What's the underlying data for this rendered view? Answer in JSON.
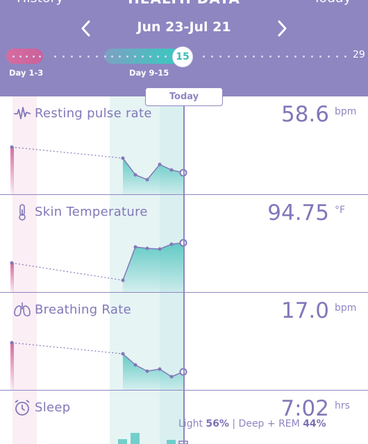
{
  "header": {
    "left_link": "History",
    "title": "HEALTH DATA",
    "right_link": "Today",
    "range": "Jun 23-Jul 21",
    "timeline": {
      "current_day": "15",
      "end_day": "29",
      "label_a": "Day 1-3",
      "label_b": "Day 9-15"
    }
  },
  "today_tag": "Today",
  "sections": [
    {
      "name": "resting-pulse",
      "title": "Resting pulse rate",
      "value": "58.6",
      "unit": "bpm",
      "icon": "pulse-icon"
    },
    {
      "name": "skin-temperature",
      "title": "Skin Temperature",
      "value": "94.75",
      "unit": "°F",
      "icon": "thermometer-icon"
    },
    {
      "name": "breathing-rate",
      "title": "Breathing Rate",
      "value": "17.0",
      "unit": "bpm",
      "icon": "lungs-icon"
    },
    {
      "name": "sleep",
      "title": "Sleep",
      "value": "7:02",
      "unit": "hrs",
      "icon": "alarm-clock-icon"
    }
  ],
  "sleep_note": {
    "light_label": "Light",
    "light_value": "56%",
    "separator": "|",
    "deep_label": "Deep + REM",
    "deep_value": "44%"
  },
  "colors": {
    "header_bg": "#8e86c1",
    "text_purple": "#8178b8",
    "pink_accent": "#d76ca0",
    "teal_accent": "#3cc6c0"
  }
}
